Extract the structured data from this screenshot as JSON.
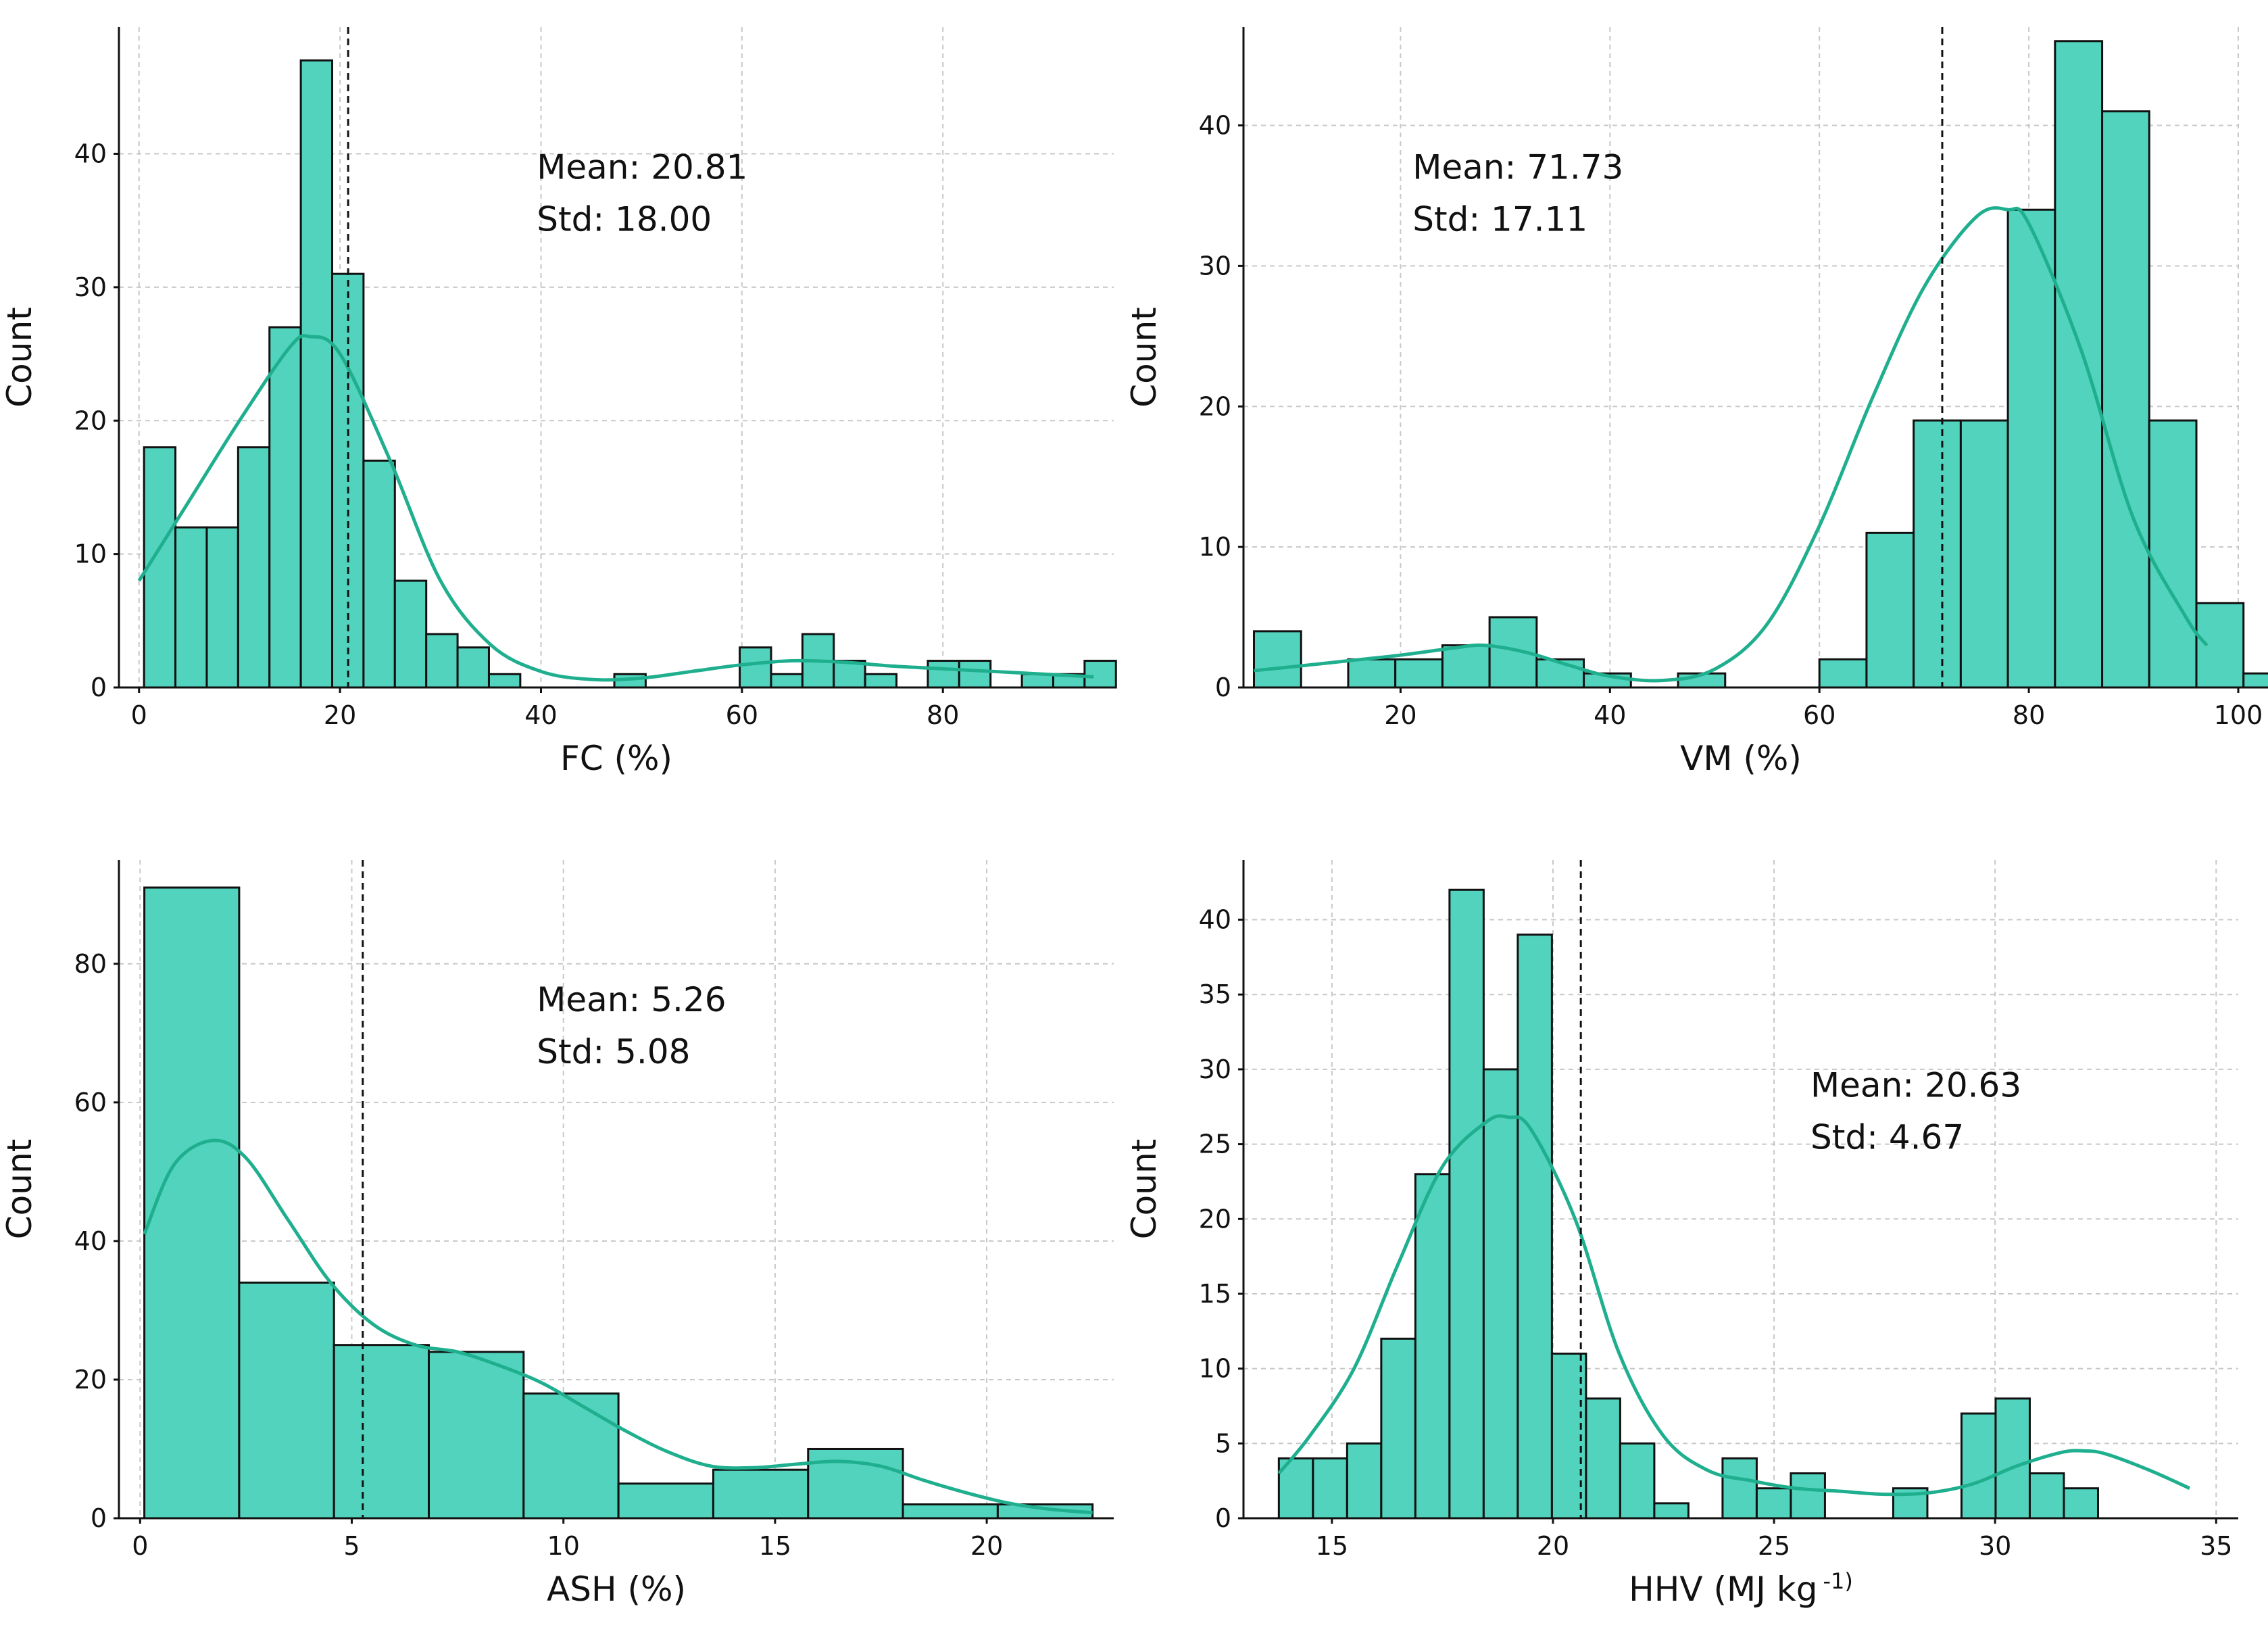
{
  "colors": {
    "bar_fill": "#52d3bd",
    "kde_line": "#1faf8e",
    "grid": "#c8c8c8"
  },
  "chart_data": [
    {
      "type": "bar",
      "variant": "histogram",
      "panel": "top-left",
      "title": "",
      "xlabel": "FC (%)",
      "xlabel_sup": "",
      "ylabel": "Count",
      "xlim": [
        -2,
        97
      ],
      "ylim": [
        0,
        49.5
      ],
      "xticks": [
        0,
        20,
        40,
        60,
        80
      ],
      "yticks": [
        0,
        10,
        20,
        30,
        40
      ],
      "bin_start": 0.5,
      "bin_width": 3.12,
      "counts": [
        18,
        12,
        12,
        18,
        27,
        47,
        31,
        17,
        8,
        4,
        3,
        1,
        0,
        0,
        0,
        1,
        0,
        0,
        0,
        3,
        1,
        4,
        2,
        1,
        0,
        2,
        2,
        0,
        1,
        1,
        2
      ],
      "kde": {
        "x": [
          0,
          5,
          10,
          15,
          17,
          20,
          25,
          30,
          35,
          40,
          45,
          50,
          55,
          60,
          65,
          70,
          75,
          80,
          85,
          90,
          95
        ],
        "y": [
          8,
          14,
          20,
          25.5,
          26.3,
          25,
          17,
          8,
          3.2,
          1.2,
          0.6,
          0.7,
          1.2,
          1.7,
          2.0,
          1.9,
          1.6,
          1.4,
          1.2,
          1.0,
          0.8
        ]
      },
      "mean": 20.81,
      "mean_label": "Mean: 20.81",
      "std_label": "Std: 18.00",
      "annot_pos": "top-center"
    },
    {
      "type": "bar",
      "variant": "histogram",
      "panel": "top-right",
      "title": "",
      "xlabel": "VM (%)",
      "xlabel_sup": "",
      "ylabel": "Count",
      "xlim": [
        5,
        100
      ],
      "ylim": [
        0,
        47
      ],
      "xticks": [
        20,
        40,
        60,
        80,
        100
      ],
      "yticks": [
        0,
        10,
        20,
        30,
        40
      ],
      "bin_start": 6,
      "bin_width": 4.5,
      "counts": [
        4,
        0,
        2,
        2,
        3,
        5,
        2,
        1,
        0,
        1,
        0,
        0,
        2,
        11,
        19,
        19,
        34,
        46,
        41,
        19,
        6,
        1
      ],
      "kde": {
        "x": [
          6,
          10,
          15,
          20,
          25,
          28,
          32,
          36,
          40,
          45,
          50,
          55,
          60,
          65,
          70,
          75,
          78,
          80,
          85,
          90,
          95,
          97
        ],
        "y": [
          1.2,
          1.5,
          1.9,
          2.3,
          2.8,
          3.0,
          2.5,
          1.6,
          0.8,
          0.5,
          1.3,
          4.5,
          11.5,
          20.5,
          28.5,
          33.5,
          34,
          33,
          24,
          12,
          5,
          3
        ]
      },
      "mean": 71.73,
      "mean_label": "Mean: 71.73",
      "std_label": "Std: 17.11",
      "annot_pos": "top-left"
    },
    {
      "type": "bar",
      "variant": "histogram",
      "panel": "bottom-left",
      "title": "",
      "xlabel": "ASH (%)",
      "xlabel_sup": "",
      "ylabel": "Count",
      "xlim": [
        -0.5,
        23
      ],
      "ylim": [
        0,
        95
      ],
      "xticks": [
        0,
        5,
        10,
        15,
        20
      ],
      "yticks": [
        0,
        20,
        40,
        60,
        80
      ],
      "bin_start": 0.1,
      "bin_width": 2.24,
      "counts": [
        91,
        34,
        25,
        24,
        18,
        5,
        7,
        10,
        2,
        2
      ],
      "kde": {
        "x": [
          0.1,
          0.8,
          1.7,
          2.5,
          3.5,
          4.5,
          5.5,
          6.5,
          7.5,
          8.5,
          9.5,
          10.5,
          11.5,
          12.5,
          13.5,
          14.5,
          15.5,
          16.5,
          17.5,
          18.5,
          19.5,
          20.5,
          21.5,
          22.5
        ],
        "y": [
          41,
          51,
          54.5,
          52,
          43,
          34,
          28,
          25,
          24,
          22,
          19.5,
          16,
          12.5,
          9.5,
          7.5,
          7.3,
          7.8,
          8.2,
          7.5,
          5.5,
          3.7,
          2.2,
          1.3,
          0.8
        ]
      },
      "mean": 5.26,
      "mean_label": "Mean: 5.26",
      "std_label": "Std: 5.08",
      "annot_pos": "top-center"
    },
    {
      "type": "bar",
      "variant": "histogram",
      "panel": "bottom-right",
      "title": "",
      "xlabel": "HHV (MJ kg",
      "xlabel_sup": "-1)",
      "ylabel": "Count",
      "xlim": [
        13,
        35.5
      ],
      "ylim": [
        0,
        44
      ],
      "xticks": [
        15,
        20,
        25,
        30,
        35
      ],
      "yticks": [
        0,
        5,
        10,
        15,
        20,
        25,
        30,
        35,
        40
      ],
      "bin_start": 13.8,
      "bin_width": 0.772,
      "counts": [
        4,
        4,
        5,
        12,
        23,
        42,
        30,
        39,
        11,
        8,
        5,
        1,
        0,
        4,
        2,
        3,
        0,
        0,
        2,
        0,
        7,
        8,
        3,
        2
      ],
      "kde": {
        "x": [
          13.8,
          14.5,
          15.5,
          16.5,
          17.5,
          18.5,
          19.0,
          19.5,
          20.5,
          21.5,
          22.5,
          23.5,
          24.5,
          25.5,
          26.5,
          27.5,
          28.5,
          29.5,
          30.5,
          31.5,
          32.0,
          32.5,
          33.5,
          34.4
        ],
        "y": [
          3,
          5.5,
          10,
          17,
          23.5,
          26.5,
          26.8,
          26,
          20,
          11,
          5.5,
          3.2,
          2.5,
          2.0,
          1.8,
          1.6,
          1.7,
          2.3,
          3.5,
          4.4,
          4.5,
          4.3,
          3.2,
          2.0
        ]
      },
      "mean": 20.63,
      "mean_label": "Mean: 20.63",
      "std_label": "Std: 4.67",
      "annot_pos": "middle-right"
    }
  ]
}
